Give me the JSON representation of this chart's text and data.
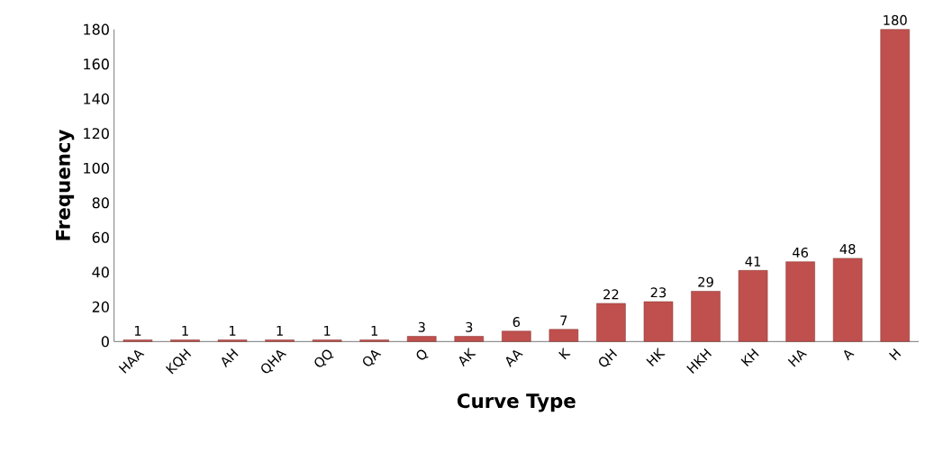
{
  "chart_data": {
    "type": "bar",
    "xlabel": "Curve Type",
    "ylabel": "Frequency",
    "categories": [
      "HAA",
      "KQH",
      "AH",
      "QHA",
      "QQ",
      "QA",
      "Q",
      "AK",
      "AA",
      "K",
      "QH",
      "HK",
      "HKH",
      "KH",
      "HA",
      "A",
      "H"
    ],
    "values": [
      1,
      1,
      1,
      1,
      1,
      1,
      3,
      3,
      6,
      7,
      22,
      23,
      29,
      41,
      46,
      48,
      180
    ],
    "color": "#c0504d",
    "ylim": [
      0,
      180
    ],
    "yticks": [
      0,
      20,
      40,
      60,
      80,
      100,
      120,
      140,
      160,
      180
    ],
    "grid": false,
    "data_labels": true
  }
}
